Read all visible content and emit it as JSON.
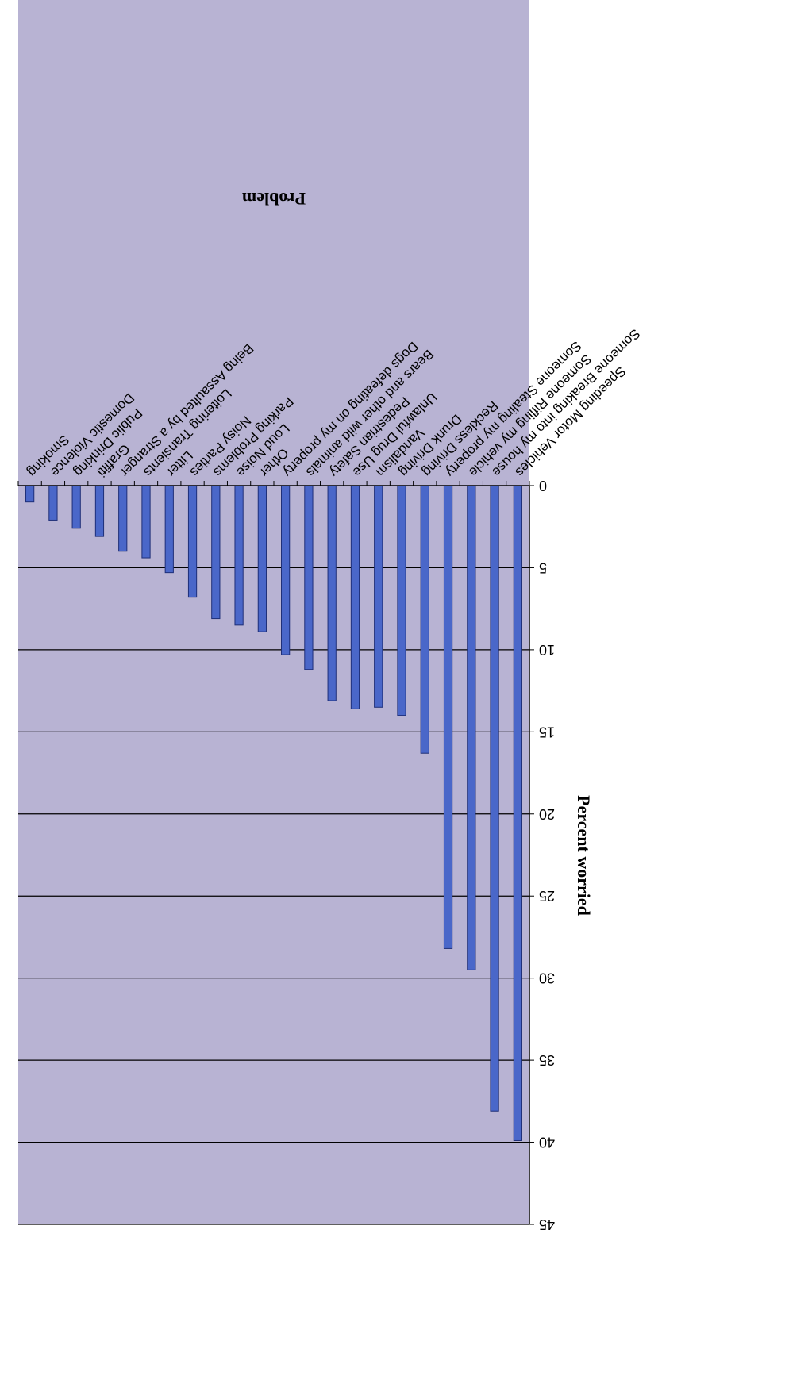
{
  "chart_data": {
    "type": "bar",
    "orientation": "vertical, page rotated 180 degrees",
    "title": "",
    "xlabel": "Problem",
    "ylabel": "Percent worried",
    "ylim": [
      0,
      45
    ],
    "yticks": [
      0,
      5,
      10,
      15,
      20,
      25,
      30,
      35,
      40,
      45
    ],
    "grid": "horizontal major gridlines",
    "legend": "none",
    "categories": [
      "Speeding Motor Vehicles",
      "Someone Breaking into my house",
      "Someone Rifling my vehicle",
      "Someone Stealing my property",
      "Reckless Driving",
      "Drunk Driving",
      "Vandalism",
      "Unlawful Drug Use",
      "Pedestrian Safety",
      "Bears and other wild animals",
      "Dogs defeating on my property",
      "Other",
      "Loud Noise",
      "Parking Problems",
      "Noisy Parties",
      "Litter",
      "Loitering Transients",
      "Being Assaulted by a Stranger",
      "Graffiti",
      "Public Drinking",
      "Domestic Violence",
      "Smoking"
    ],
    "values": [
      39.9,
      38.1,
      29.5,
      28.2,
      16.3,
      14.0,
      13.5,
      13.6,
      13.1,
      11.2,
      10.3,
      8.9,
      8.5,
      8.1,
      6.8,
      5.3,
      4.4,
      4.0,
      3.1,
      2.6,
      2.1,
      1.0
    ],
    "colors": {
      "plot_background": "#b8b3d3",
      "bar_fill": "#4a67c9",
      "bar_edge": "#1e2f78",
      "gridline": "#000000"
    }
  }
}
